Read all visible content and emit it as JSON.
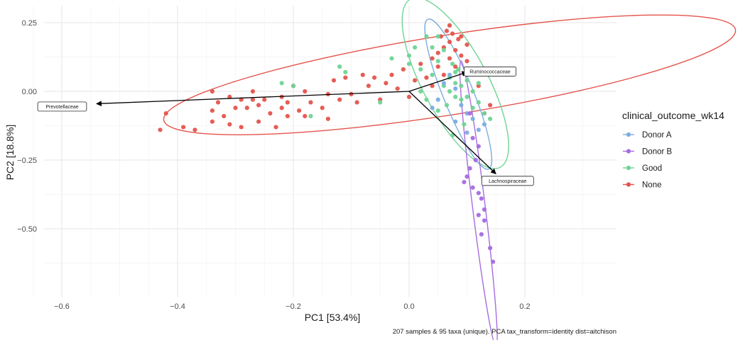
{
  "chart_data": {
    "type": "scatter",
    "title": "",
    "xlabel": "PC1 [53.4%]",
    "ylabel": "PC2 [18.8%]",
    "caption": "207 samples & 95 taxa (unique). PCA tax_transform=identity dist=aitchison",
    "xlim": [
      -0.66,
      0.36
    ],
    "ylim": [
      -0.7,
      0.3
    ],
    "x_ticks": [
      -0.6,
      -0.4,
      -0.2,
      0.0,
      0.2
    ],
    "x_tick_labels": [
      "−0.6",
      "−0.4",
      "−0.2",
      "0.0",
      "0.2"
    ],
    "y_ticks": [
      0.25,
      0.0,
      -0.25,
      -0.5
    ],
    "y_tick_labels": [
      "0.25",
      "0.00",
      "−0.25",
      "−0.50"
    ],
    "grid": true,
    "legend": {
      "title": "clinical_outcome_wk14",
      "position": "right",
      "items": [
        "Donor A",
        "Donor B",
        "Good",
        "None"
      ]
    },
    "colors": {
      "Donor A": "#7CAEE0",
      "Donor B": "#A56DE0",
      "Good": "#6FD495",
      "None": "#E4544C"
    },
    "series": [
      {
        "name": "None",
        "points": [
          [
            -0.43,
            -0.14
          ],
          [
            -0.42,
            -0.08
          ],
          [
            -0.39,
            -0.13
          ],
          [
            -0.37,
            -0.14
          ],
          [
            -0.34,
            -0.07
          ],
          [
            -0.34,
            -0.11
          ],
          [
            -0.34,
            0.0
          ],
          [
            -0.33,
            -0.04
          ],
          [
            -0.32,
            -0.09
          ],
          [
            -0.31,
            -0.02
          ],
          [
            -0.31,
            -0.12
          ],
          [
            -0.3,
            -0.06
          ],
          [
            -0.29,
            -0.03
          ],
          [
            -0.29,
            -0.13
          ],
          [
            -0.28,
            -0.06
          ],
          [
            -0.27,
            -0.03
          ],
          [
            -0.27,
            0.0
          ],
          [
            -0.26,
            -0.05
          ],
          [
            -0.26,
            -0.11
          ],
          [
            -0.25,
            -0.03
          ],
          [
            -0.24,
            -0.08
          ],
          [
            -0.23,
            -0.13
          ],
          [
            -0.22,
            -0.02
          ],
          [
            -0.22,
            -0.06
          ],
          [
            -0.21,
            -0.04
          ],
          [
            -0.21,
            -0.09
          ],
          [
            -0.2,
            0.02
          ],
          [
            -0.19,
            -0.07
          ],
          [
            -0.18,
            -0.09
          ],
          [
            -0.18,
            0.0
          ],
          [
            -0.17,
            -0.04
          ],
          [
            -0.15,
            -0.06
          ],
          [
            -0.14,
            -0.01
          ],
          [
            -0.14,
            -0.1
          ],
          [
            -0.13,
            0.04
          ],
          [
            -0.12,
            -0.03
          ],
          [
            -0.11,
            0.05
          ],
          [
            -0.1,
            -0.01
          ],
          [
            -0.09,
            -0.04
          ],
          [
            -0.08,
            0.06
          ],
          [
            -0.07,
            0.02
          ],
          [
            -0.06,
            0.05
          ],
          [
            -0.05,
            -0.03
          ],
          [
            -0.04,
            0.03
          ],
          [
            -0.03,
            0.06
          ],
          [
            -0.02,
            0.01
          ],
          [
            -0.01,
            0.08
          ],
          [
            0.0,
            -0.02
          ],
          [
            0.01,
            0.04
          ],
          [
            0.02,
            0.1
          ],
          [
            0.03,
            0.05
          ],
          [
            0.04,
            0.12
          ],
          [
            0.04,
            0.02
          ],
          [
            0.05,
            0.14
          ],
          [
            0.05,
            0.09
          ],
          [
            0.055,
            0.2
          ],
          [
            0.06,
            0.16
          ],
          [
            0.065,
            0.22
          ],
          [
            0.06,
            0.06
          ],
          [
            0.07,
            0.24
          ],
          [
            0.07,
            0.18
          ],
          [
            0.07,
            0.12
          ],
          [
            0.075,
            0.21
          ],
          [
            0.08,
            0.15
          ],
          [
            0.08,
            0.09
          ],
          [
            0.085,
            0.19
          ],
          [
            0.09,
            0.2
          ],
          [
            0.09,
            0.13
          ],
          [
            0.1,
            0.17
          ],
          [
            0.1,
            0.11
          ],
          [
            0.11,
            0.08
          ],
          [
            0.12,
            0.02
          ],
          [
            0.13,
            -0.08
          ],
          [
            0.14,
            -0.05
          ]
        ]
      },
      {
        "name": "Good",
        "points": [
          [
            -0.22,
            0.03
          ],
          [
            -0.2,
            0.02
          ],
          [
            -0.17,
            -0.09
          ],
          [
            -0.12,
            0.09
          ],
          [
            -0.11,
            0.07
          ],
          [
            -0.05,
            -0.04
          ],
          [
            -0.03,
            0.12
          ],
          [
            0.0,
            0.13
          ],
          [
            0.0,
            0.1
          ],
          [
            0.01,
            0.16
          ],
          [
            0.02,
            0.0
          ],
          [
            0.02,
            0.08
          ],
          [
            0.03,
            0.2
          ],
          [
            0.03,
            -0.03
          ],
          [
            0.04,
            0.06
          ],
          [
            0.04,
            0.16
          ],
          [
            0.05,
            0.2
          ],
          [
            0.05,
            -0.07
          ],
          [
            0.05,
            0.11
          ],
          [
            0.06,
            0.02
          ],
          [
            0.06,
            0.15
          ],
          [
            0.065,
            -0.05
          ],
          [
            0.07,
            0.0
          ],
          [
            0.07,
            0.05
          ],
          [
            0.075,
            0.1
          ],
          [
            0.08,
            -0.02
          ],
          [
            0.08,
            0.03
          ],
          [
            0.08,
            0.07
          ],
          [
            0.09,
            -0.03
          ],
          [
            0.09,
            0.02
          ],
          [
            0.1,
            -0.02
          ],
          [
            0.1,
            0.04
          ],
          [
            0.11,
            0.0
          ],
          [
            0.11,
            -0.06
          ],
          [
            0.12,
            -0.04
          ],
          [
            0.12,
            0.03
          ],
          [
            0.13,
            -0.08
          ],
          [
            0.14,
            -0.1
          ],
          [
            0.095,
            -0.12
          ],
          [
            0.075,
            -0.16
          ],
          [
            0.085,
            0.08
          ]
        ]
      },
      {
        "name": "Donor A",
        "points": [
          [
            0.04,
            -0.06
          ],
          [
            0.05,
            -0.03
          ],
          [
            0.06,
            0.03
          ],
          [
            0.07,
            0.06
          ],
          [
            0.08,
            0.01
          ],
          [
            0.09,
            -0.05
          ],
          [
            0.1,
            -0.08
          ],
          [
            0.11,
            -0.1
          ],
          [
            0.12,
            -0.14
          ],
          [
            0.1,
            -0.15
          ],
          [
            0.08,
            -0.11
          ],
          [
            0.13,
            -0.12
          ]
        ]
      },
      {
        "name": "Donor B",
        "points": [
          [
            0.105,
            -0.08
          ],
          [
            0.11,
            -0.17
          ],
          [
            0.12,
            -0.2
          ],
          [
            0.115,
            -0.25
          ],
          [
            0.105,
            -0.28
          ],
          [
            0.1,
            -0.31
          ],
          [
            0.095,
            -0.33
          ],
          [
            0.11,
            -0.35
          ],
          [
            0.12,
            -0.37
          ],
          [
            0.125,
            -0.39
          ],
          [
            0.13,
            -0.43
          ],
          [
            0.12,
            -0.45
          ],
          [
            0.13,
            -0.47
          ],
          [
            0.14,
            -0.57
          ],
          [
            0.145,
            -0.62
          ],
          [
            0.125,
            -0.52
          ]
        ]
      }
    ],
    "ellipses": [
      {
        "name": "None",
        "cx": 0.07,
        "cy": 0.06,
        "rx": 0.5,
        "ry": 0.145,
        "angle_deg": 9
      },
      {
        "name": "Good",
        "cx": 0.08,
        "cy": 0.03,
        "rx": 0.165,
        "ry": 0.118,
        "angle_deg": -62
      },
      {
        "name": "Donor A",
        "cx": 0.085,
        "cy": -0.01,
        "rx": 0.14,
        "ry": 0.055,
        "angle_deg": -68
      },
      {
        "name": "Donor B",
        "cx": 0.12,
        "cy": -0.41,
        "rx": 0.25,
        "ry": 0.023,
        "angle_deg": -83
      }
    ],
    "loadings": [
      {
        "label": "Prevotellaceae",
        "x": -0.54,
        "y": -0.045
      },
      {
        "label": "Ruminococcaceae",
        "x": 0.1,
        "y": 0.07
      },
      {
        "label": "Lachnospiraceae",
        "x": 0.15,
        "y": -0.3
      }
    ]
  }
}
